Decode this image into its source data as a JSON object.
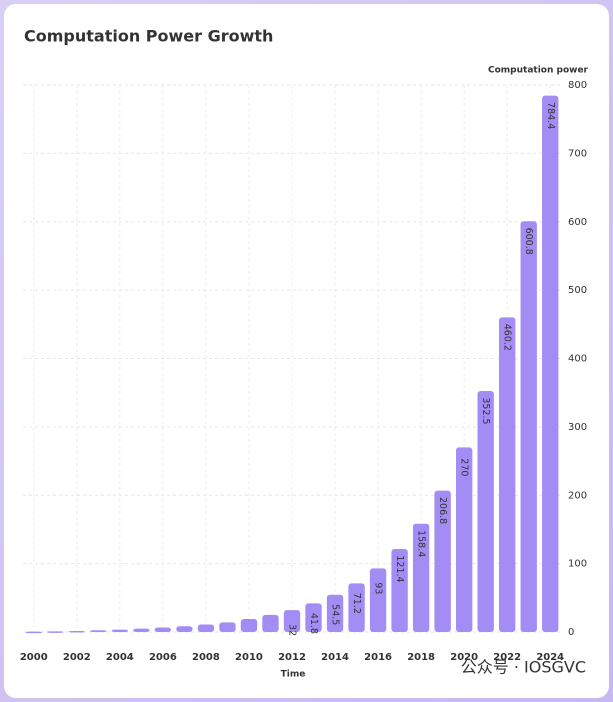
{
  "chart_data": {
    "type": "bar",
    "title": "Computation Power Growth",
    "x_label": "Time",
    "y_label": "Computation power",
    "categories": [
      "2000",
      null,
      "2002",
      null,
      "2004",
      null,
      "2006",
      null,
      "2008",
      null,
      "2010",
      null,
      "2012",
      null,
      "2014",
      null,
      "2016",
      null,
      "2018",
      null,
      "2020",
      null,
      "2022",
      null,
      "2024"
    ],
    "values": [
      0.5,
      1,
      1.5,
      2.5,
      3.5,
      5,
      6.5,
      8.5,
      11,
      14,
      19,
      25,
      32,
      41.8,
      54.5,
      71.2,
      93,
      121.4,
      158.4,
      206.8,
      270,
      352.5,
      460.2,
      600.8,
      784.4
    ],
    "value_labels": [
      null,
      null,
      null,
      null,
      null,
      null,
      null,
      null,
      null,
      null,
      null,
      null,
      "32",
      "41.8",
      "54.5",
      "71.2",
      "93",
      "121.4",
      "158.4",
      "206.8",
      "270",
      "352.5",
      "460.2",
      "600.8",
      "784.4"
    ],
    "color": "#a48cf5",
    "ylim": [
      0,
      800
    ],
    "yticks": [
      0,
      100,
      200,
      300,
      400,
      500,
      600,
      700,
      800
    ],
    "grid": true,
    "watermark": "公众号 · IOSGVC"
  }
}
